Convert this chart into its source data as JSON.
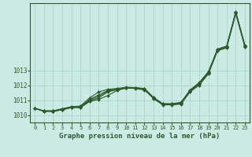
{
  "xlabel": "Graphe pression niveau de la mer (hPa)",
  "ylabel": "",
  "background_color": "#cceae4",
  "grid_color": "#aad4cc",
  "line_color": "#2d5a2d",
  "ylim": [
    1009.5,
    1017.5
  ],
  "xlim": [
    -0.5,
    23.5
  ],
  "yticks": [
    1010,
    1011,
    1012,
    1013
  ],
  "xticks": [
    0,
    1,
    2,
    3,
    4,
    5,
    6,
    7,
    8,
    9,
    10,
    11,
    12,
    13,
    14,
    15,
    16,
    17,
    18,
    19,
    20,
    21,
    22,
    23
  ],
  "series": [
    [
      1010.45,
      1010.25,
      1010.25,
      1010.35,
      1010.5,
      1010.5,
      1010.9,
      1011.05,
      1011.3,
      1011.65,
      1011.8,
      1011.78,
      1011.68,
      1011.1,
      1010.68,
      1010.68,
      1010.73,
      1011.55,
      1012.0,
      1012.75,
      1014.3,
      1014.5,
      1016.8,
      1014.55
    ],
    [
      1010.45,
      1010.25,
      1010.25,
      1010.35,
      1010.5,
      1010.52,
      1010.95,
      1011.15,
      1011.55,
      1011.7,
      1011.82,
      1011.8,
      1011.72,
      1011.12,
      1010.7,
      1010.7,
      1010.78,
      1011.6,
      1012.08,
      1012.82,
      1014.35,
      1014.55,
      1016.85,
      1014.6
    ],
    [
      1010.45,
      1010.25,
      1010.25,
      1010.37,
      1010.52,
      1010.54,
      1011.0,
      1011.25,
      1011.6,
      1011.72,
      1011.83,
      1011.81,
      1011.74,
      1011.14,
      1010.72,
      1010.72,
      1010.8,
      1011.62,
      1012.1,
      1012.84,
      1014.37,
      1014.57,
      1016.87,
      1014.62
    ],
    [
      1010.45,
      1010.28,
      1010.28,
      1010.4,
      1010.54,
      1010.56,
      1011.05,
      1011.35,
      1011.65,
      1011.74,
      1011.84,
      1011.82,
      1011.76,
      1011.16,
      1010.74,
      1010.74,
      1010.82,
      1011.64,
      1012.12,
      1012.86,
      1014.39,
      1014.59,
      1016.89,
      1014.64
    ],
    [
      1010.45,
      1010.28,
      1010.28,
      1010.42,
      1010.56,
      1010.6,
      1011.15,
      1011.55,
      1011.72,
      1011.78,
      1011.86,
      1011.84,
      1011.78,
      1011.18,
      1010.76,
      1010.76,
      1010.85,
      1011.68,
      1012.18,
      1012.9,
      1014.42,
      1014.62,
      1016.92,
      1014.67
    ]
  ]
}
